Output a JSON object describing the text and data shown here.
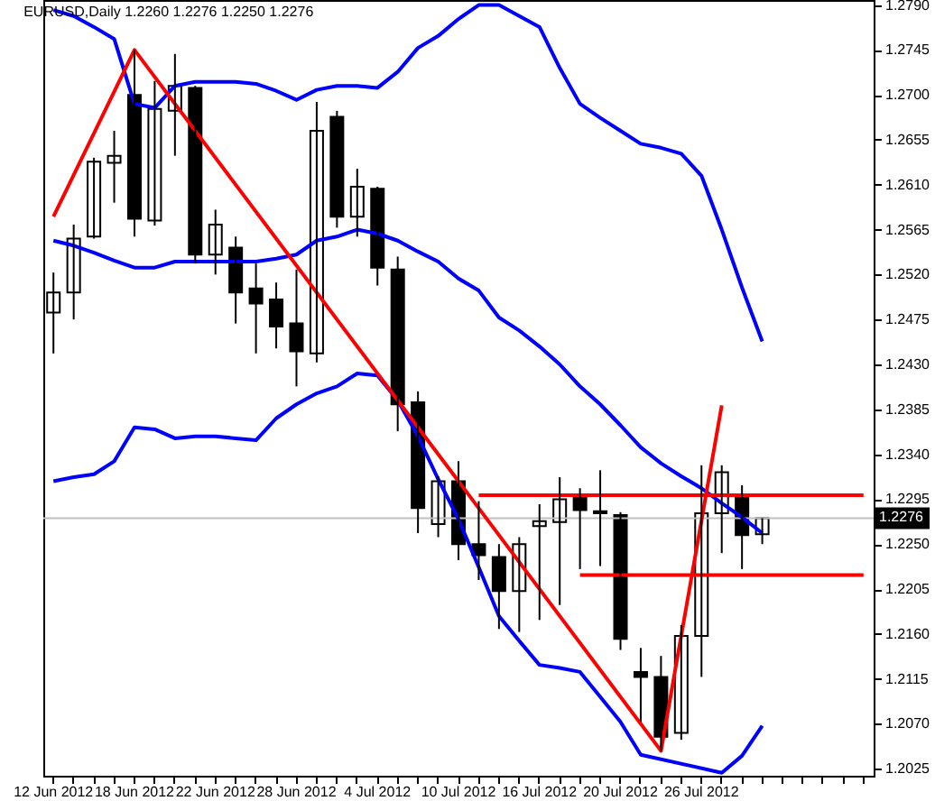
{
  "chart_data": {
    "type": "candlestick",
    "title": "EURUSD,Daily  1.2260 1.2276 1.2250 1.2276",
    "categories": [
      "12 Jun 2012",
      null,
      null,
      null,
      "18 Jun 2012",
      null,
      null,
      null,
      "22 Jun 2012",
      null,
      null,
      null,
      "28 Jun 2012",
      null,
      null,
      null,
      "4 Jul 2012",
      null,
      null,
      null,
      "10 Jul 2012",
      null,
      null,
      null,
      "16 Jul 2012",
      null,
      null,
      null,
      "20 Jul 2012",
      null,
      null,
      null,
      "26 Jul 2012",
      null,
      null,
      null,
      null,
      null,
      null,
      null,
      null
    ],
    "ohlc": [
      [
        1.2482,
        1.2522,
        1.2441,
        1.2502
      ],
      [
        1.2502,
        1.257,
        1.2475,
        1.2556
      ],
      [
        1.2558,
        1.2637,
        1.2556,
        1.2633
      ],
      [
        1.2632,
        1.2664,
        1.2592,
        1.2639
      ],
      [
        1.27,
        1.2745,
        1.2558,
        1.2576
      ],
      [
        1.2574,
        1.2714,
        1.2569,
        1.2686
      ],
      [
        1.2684,
        1.2741,
        1.2639,
        1.2709
      ],
      [
        1.2707,
        1.2709,
        1.2531,
        1.254
      ],
      [
        1.254,
        1.2585,
        1.252,
        1.257
      ],
      [
        1.2547,
        1.2558,
        1.2471,
        1.2502
      ],
      [
        1.2506,
        1.2531,
        1.2441,
        1.2491
      ],
      [
        1.2495,
        1.2512,
        1.2446,
        1.2468
      ],
      [
        1.2471,
        1.2525,
        1.2408,
        1.2443
      ],
      [
        1.2441,
        1.2693,
        1.2432,
        1.2664
      ],
      [
        1.2678,
        1.2684,
        1.2567,
        1.2578
      ],
      [
        1.2578,
        1.2626,
        1.2558,
        1.2608
      ],
      [
        1.2606,
        1.2608,
        1.2509,
        1.2527
      ],
      [
        1.2525,
        1.2538,
        1.2363,
        1.239
      ],
      [
        1.2392,
        1.2403,
        1.2261,
        1.2286
      ],
      [
        1.227,
        1.2318,
        1.2257,
        1.2313
      ],
      [
        1.2313,
        1.2333,
        1.2234,
        1.225
      ],
      [
        1.225,
        1.2293,
        1.2214,
        1.2239
      ],
      [
        1.2237,
        1.225,
        1.2165,
        1.2203
      ],
      [
        1.2203,
        1.2257,
        1.2162,
        1.225
      ],
      [
        1.2268,
        1.229,
        1.2174,
        1.2273
      ],
      [
        1.2272,
        1.2317,
        1.2189,
        1.2295
      ],
      [
        1.2297,
        1.2306,
        1.2225,
        1.2284
      ],
      [
        1.2283,
        1.2324,
        1.2228,
        1.2281
      ],
      [
        1.2279,
        1.2282,
        1.2144,
        1.2155
      ],
      [
        1.2122,
        1.2146,
        1.2072,
        1.2117
      ],
      [
        1.2117,
        1.2138,
        1.2043,
        1.2057
      ],
      [
        1.2061,
        1.2169,
        1.2054,
        1.2158
      ],
      [
        1.2158,
        1.2329,
        1.2117,
        1.2281
      ],
      [
        1.2281,
        1.2329,
        1.2241,
        1.2322
      ],
      [
        1.2297,
        1.2309,
        1.2225,
        1.2259
      ],
      [
        1.226,
        1.2276,
        1.225,
        1.2276
      ],
      null,
      null,
      null,
      null,
      null
    ],
    "series": [
      {
        "type": "line",
        "color": "#0000ff",
        "values": [
          1.2785,
          1.2779,
          1.2768,
          1.2756,
          1.2691,
          1.2687,
          1.2709,
          1.2713,
          1.2713,
          1.2713,
          1.2711,
          1.2704,
          1.2695,
          1.2705,
          1.2709,
          1.2709,
          1.2707,
          1.2723,
          1.2747,
          1.2759,
          1.2776,
          1.279,
          1.279,
          1.2779,
          1.2768,
          1.2727,
          1.2691,
          1.2677,
          1.2664,
          1.2651,
          1.2647,
          1.2641,
          1.2619,
          1.2565,
          1.2507,
          1.2453,
          null,
          null,
          null,
          null,
          null
        ]
      },
      {
        "type": "line",
        "color": "#0000ff",
        "values": [
          1.2554,
          1.2549,
          1.2542,
          1.2534,
          1.2527,
          1.2527,
          1.2533,
          1.2533,
          1.2533,
          1.2533,
          1.2533,
          1.2536,
          1.254,
          1.2554,
          1.2558,
          1.2565,
          1.2561,
          1.2554,
          1.2543,
          1.2533,
          1.2516,
          1.2504,
          1.2477,
          1.2464,
          1.2448,
          1.243,
          1.2408,
          1.239,
          1.2369,
          1.2347,
          1.2331,
          1.2318,
          1.2306,
          1.2291,
          1.2277,
          1.2261,
          null,
          null,
          null,
          null,
          null
        ]
      },
      {
        "type": "line",
        "color": "#0000ff",
        "values": [
          1.2313,
          1.2317,
          1.232,
          1.2333,
          1.2367,
          1.2365,
          1.2356,
          1.2358,
          1.2358,
          1.2356,
          1.2354,
          1.2376,
          1.239,
          1.2401,
          1.2408,
          1.2421,
          1.2419,
          1.2394,
          1.2358,
          1.2315,
          1.2275,
          1.2227,
          1.2178,
          1.2153,
          1.2129,
          1.2126,
          1.2122,
          1.2097,
          1.2072,
          1.2039,
          null,
          null,
          null,
          1.2021,
          1.2038,
          1.2068,
          null,
          null,
          null,
          null,
          null
        ]
      },
      {
        "type": "line",
        "color": "#ff0000",
        "values": [
          1.2578,
          null,
          null,
          null,
          1.2745,
          null,
          null,
          null,
          null,
          null,
          null,
          null,
          null,
          null,
          null,
          null,
          null,
          null,
          null,
          null,
          null,
          null,
          null,
          null,
          null,
          null,
          null,
          null,
          null,
          null,
          1.2043,
          null,
          null,
          1.2389,
          null,
          null,
          null,
          null,
          null,
          null,
          null
        ]
      },
      {
        "type": "line",
        "color": "#ff0000",
        "values": [
          null,
          null,
          null,
          null,
          null,
          null,
          null,
          null,
          null,
          null,
          null,
          null,
          null,
          null,
          null,
          null,
          null,
          null,
          null,
          null,
          null,
          1.2299,
          1.2299,
          1.2299,
          1.2299,
          1.2299,
          1.2299,
          1.2299,
          1.2299,
          1.2299,
          1.2299,
          1.2299,
          1.2299,
          1.2299,
          1.2299,
          1.2299,
          1.2299,
          1.2299,
          1.2299,
          1.2299,
          1.2299
        ]
      },
      {
        "type": "line",
        "color": "#ff0000",
        "values": [
          null,
          null,
          null,
          null,
          null,
          null,
          null,
          null,
          null,
          null,
          null,
          null,
          null,
          null,
          null,
          null,
          null,
          null,
          null,
          null,
          null,
          null,
          null,
          null,
          null,
          null,
          1.2219,
          1.2219,
          1.2219,
          1.2219,
          1.2219,
          1.2219,
          1.2219,
          1.2219,
          1.2219,
          1.2219,
          1.2219,
          1.2219,
          1.2219,
          1.2219,
          1.2219
        ]
      }
    ],
    "ref_lines": [
      {
        "axis": "y",
        "value": 1.2276,
        "label": "1.2276",
        "color": "#c0c0c0"
      }
    ],
    "ylim": [
      1.2018,
      1.2795
    ],
    "yticks": [
      {
        "value": 1.279,
        "label": "1.2790"
      },
      1.2745,
      {
        "value": 1.27,
        "label": "1.2700"
      },
      1.2655,
      {
        "value": 1.261,
        "label": "1.2610"
      },
      1.2565,
      {
        "value": 1.252,
        "label": "1.2520"
      },
      1.2475,
      {
        "value": 1.243,
        "label": "1.2430"
      },
      1.2385,
      {
        "value": 1.234,
        "label": "1.2340"
      },
      1.2295,
      {
        "value": 1.225,
        "label": "1.2250"
      },
      1.2205,
      {
        "value": 1.216,
        "label": "1.2160"
      },
      1.2115,
      {
        "value": 1.207,
        "label": "1.2070"
      },
      1.2025
    ]
  }
}
